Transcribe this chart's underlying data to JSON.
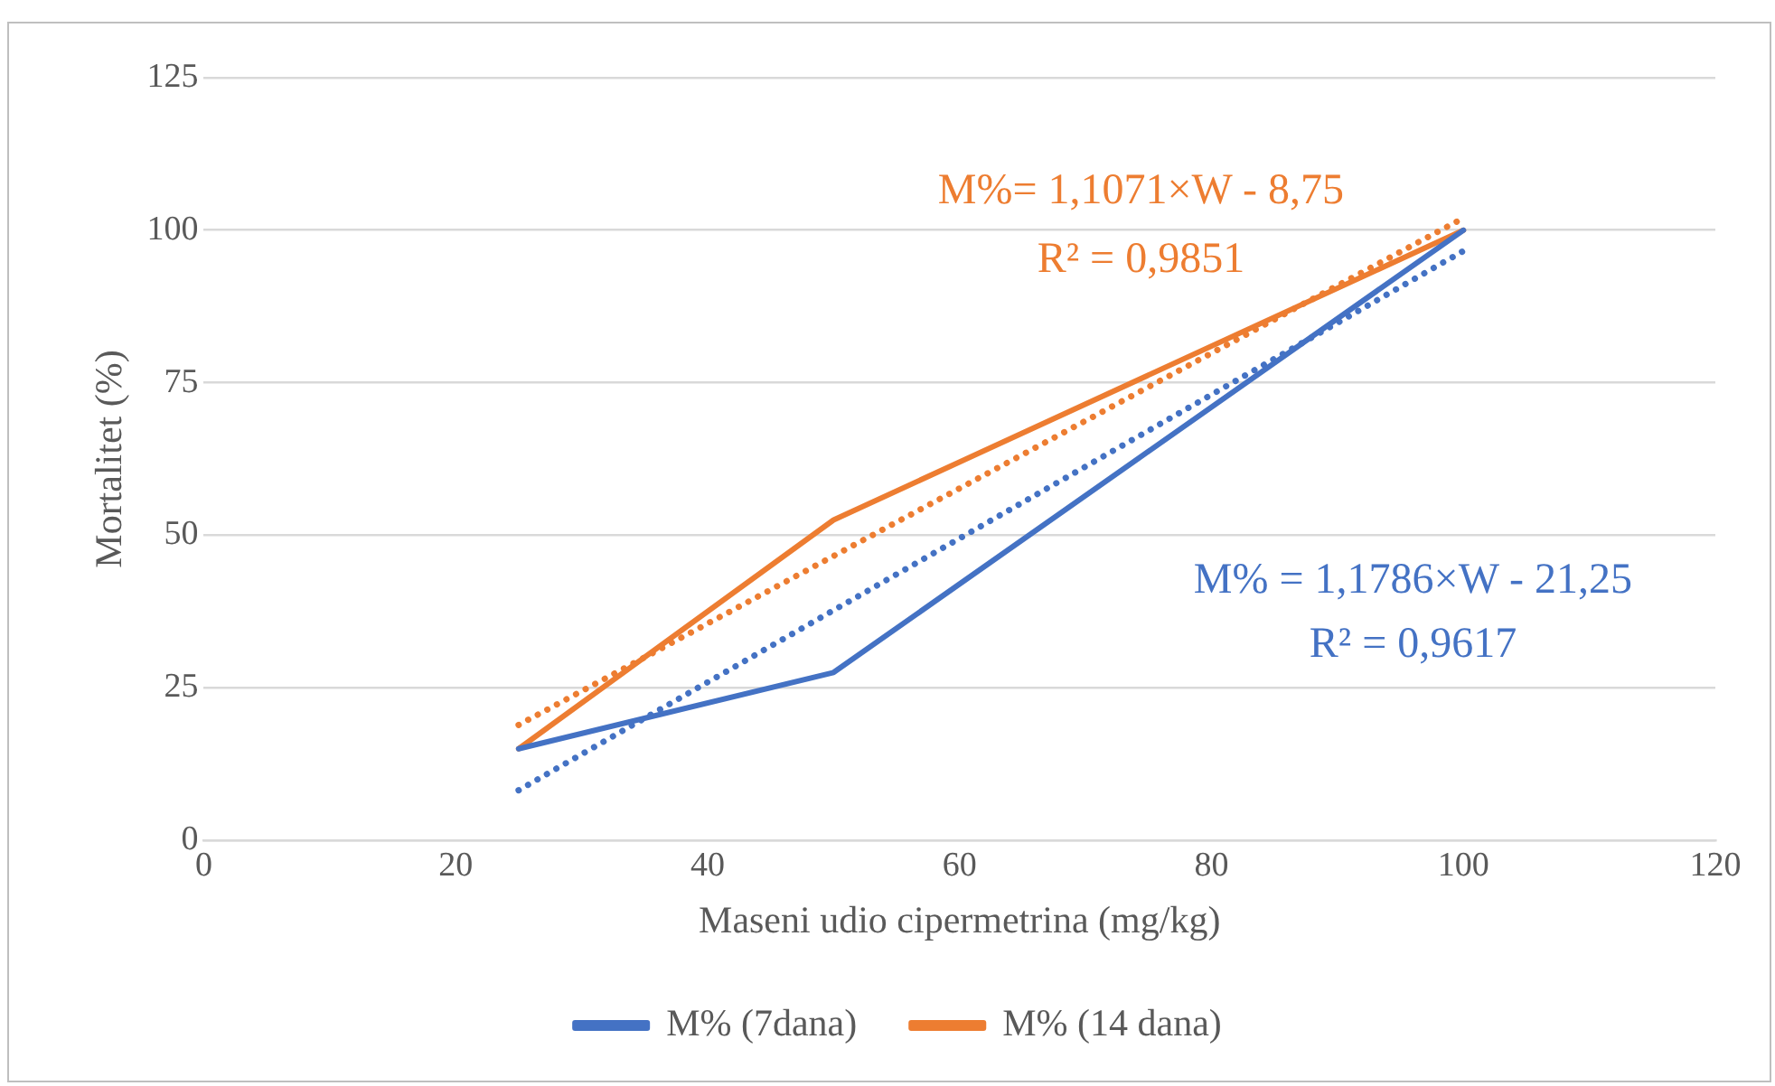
{
  "chart_data": {
    "type": "line",
    "xlabel": "Maseni udio cipermetrina (mg/kg)",
    "ylabel": "Mortalitet (%)",
    "xlim": [
      0,
      120
    ],
    "xticks": [
      0,
      20,
      40,
      60,
      80,
      100,
      120
    ],
    "ylim": [
      0,
      125
    ],
    "yticks": [
      0,
      25,
      50,
      75,
      100,
      125
    ],
    "x": [
      25,
      50,
      100
    ],
    "series": [
      {
        "name": "M% (7dana)",
        "color": "#4472c4",
        "values": [
          15,
          27.5,
          100
        ]
      },
      {
        "name": "M% (14 dana)",
        "color": "#ed7d31",
        "values": [
          15,
          52.5,
          100
        ]
      },
      {
        "color": "#ed7d31",
        "values": [
          18.9,
          46.6,
          102
        ],
        "line_style": "dotted"
      },
      {
        "color": "#4472c4",
        "values": [
          8.2,
          37.7,
          96.6
        ],
        "line_style": "dotted"
      }
    ],
    "annotations": [
      "M%= 1,1071×W - 8,75",
      "R² = 0,9851",
      "M% = 1,1786×W - 21,25",
      "R² = 0,9617"
    ],
    "grid": "y",
    "legend": "bottom",
    "marker": "none",
    "line_style": "solid"
  }
}
